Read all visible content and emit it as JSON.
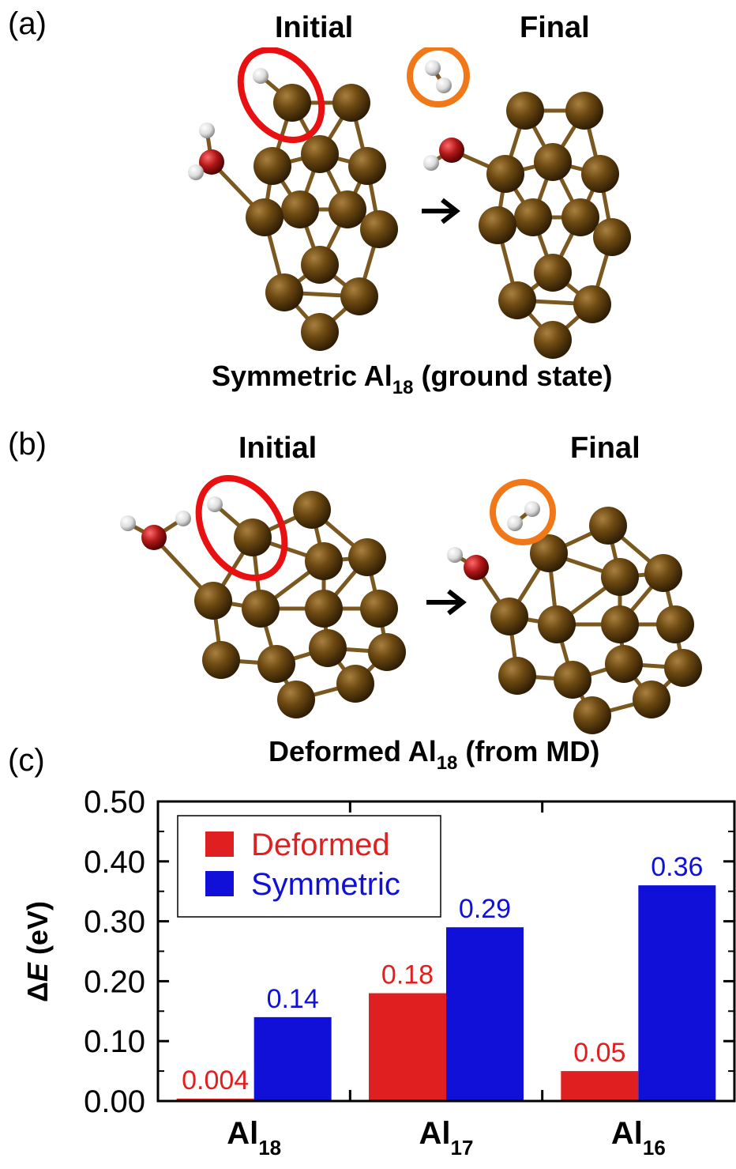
{
  "panels": {
    "a": {
      "label": "(a)",
      "initial": "Initial",
      "final": "Final",
      "caption_pre": "Symmetric Al",
      "caption_sub": "18",
      "caption_post": " (ground state)",
      "caption_color": "#1a1ab8"
    },
    "b": {
      "label": "(b)",
      "initial": "Initial",
      "final": "Final",
      "caption_pre": "Deformed Al",
      "caption_sub": "18",
      "caption_post": " (from MD)",
      "caption_color": "#d42a2a"
    },
    "c": {
      "label": "(c)"
    }
  },
  "atom_colors": {
    "al": "#6e4a12",
    "oxygen": "#b01818",
    "hydrogen": "#e8e8e8",
    "red_circle": "#e81010",
    "orange_circle": "#f07818",
    "arrow": "#000000"
  },
  "chart_data": {
    "type": "bar",
    "categories": [
      "Al18",
      "Al17",
      "Al16"
    ],
    "category_labels": [
      {
        "base": "Al",
        "sub": "18"
      },
      {
        "base": "Al",
        "sub": "17"
      },
      {
        "base": "Al",
        "sub": "16"
      }
    ],
    "series": [
      {
        "name": "Deformed",
        "color": "#e02020",
        "values": [
          0.004,
          0.18,
          0.05
        ],
        "labels": [
          "0.004",
          "0.18",
          "0.05"
        ]
      },
      {
        "name": "Symmetric",
        "color": "#1010d8",
        "values": [
          0.14,
          0.29,
          0.36
        ],
        "labels": [
          "0.14",
          "0.29",
          "0.36"
        ]
      }
    ],
    "ylabel_pre": "Δ",
    "ylabel_italic": "E",
    "ylabel_post": " (eV)",
    "ylim": [
      0,
      0.5
    ],
    "yticks": [
      "0.00",
      "0.10",
      "0.20",
      "0.30",
      "0.40",
      "0.50"
    ],
    "ytick_values": [
      0,
      0.1,
      0.2,
      0.3,
      0.4,
      0.5
    ],
    "legend_position": "top-left",
    "grid": false
  }
}
